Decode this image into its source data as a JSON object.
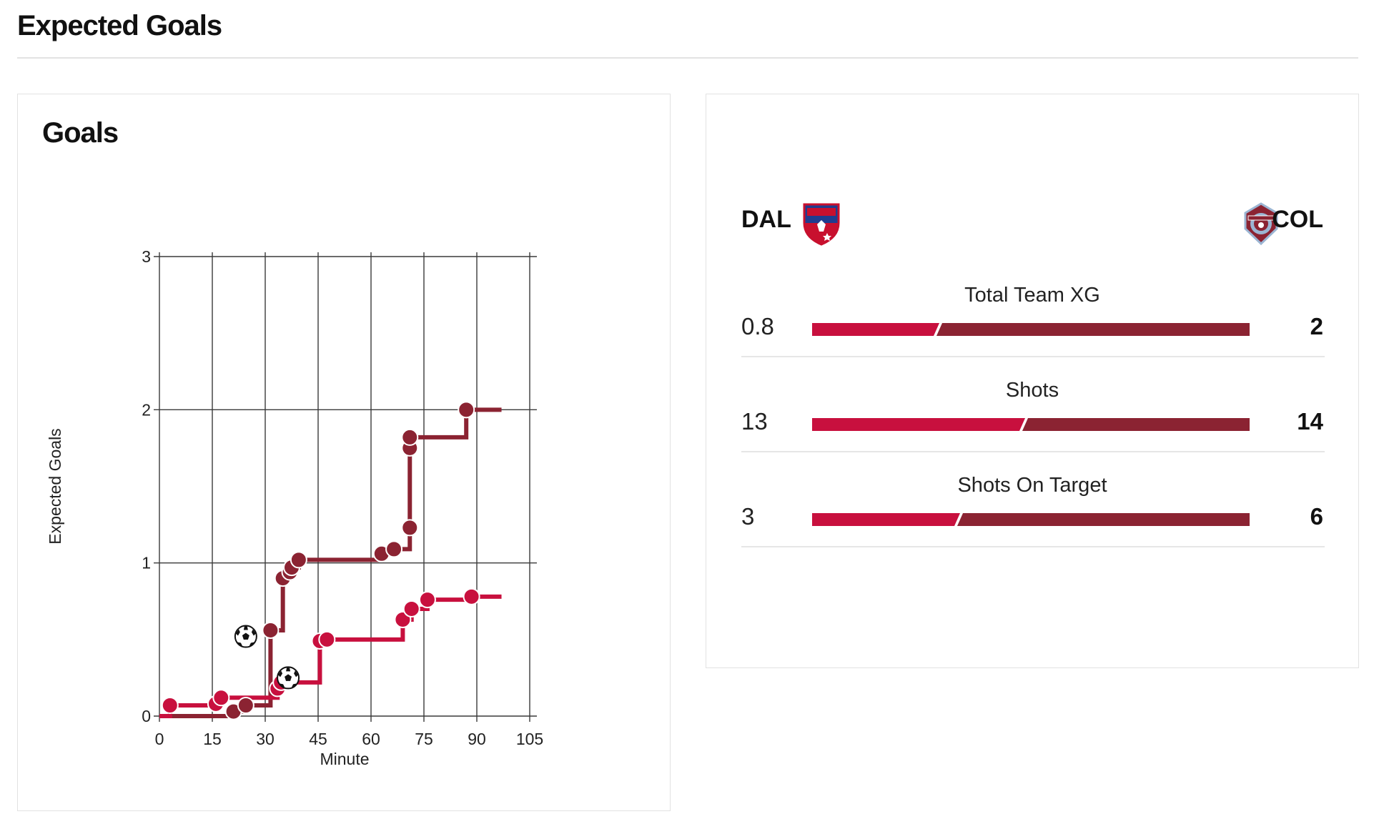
{
  "page": {
    "title": "Expected Goals"
  },
  "goals_card": {
    "title": "Goals"
  },
  "colors": {
    "dal": "#c8103e",
    "col": "#8b2332",
    "grid": "#3a3a3a",
    "divider": "#e6e6e6"
  },
  "chart_data": {
    "type": "line",
    "step": true,
    "title": "",
    "xlabel": "Minute",
    "ylabel": "Expected Goals",
    "xlim": [
      0,
      105
    ],
    "ylim": [
      0,
      3
    ],
    "xticks": [
      "0",
      "15",
      "30",
      "45",
      "60",
      "75",
      "90",
      "105"
    ],
    "yticks": [
      "0",
      "1",
      "2",
      "3"
    ],
    "grid": true,
    "series": [
      {
        "team": "DAL",
        "color": "#c8103e",
        "points": [
          [
            3,
            0.07
          ],
          [
            16,
            0.08
          ],
          [
            17.5,
            0.12
          ],
          [
            33.5,
            0.18
          ],
          [
            34.5,
            0.22
          ],
          [
            45.5,
            0.49
          ],
          [
            47.5,
            0.5
          ],
          [
            69,
            0.63
          ],
          [
            71.5,
            0.7
          ],
          [
            76,
            0.76
          ],
          [
            88.5,
            0.78
          ]
        ],
        "end_minute": 97,
        "goals": [
          [
            36.5,
            0.25
          ]
        ]
      },
      {
        "team": "COL",
        "color": "#8b2332",
        "points": [
          [
            21,
            0.03
          ],
          [
            24.5,
            0.07
          ],
          [
            31.5,
            0.56
          ],
          [
            35,
            0.9
          ],
          [
            37,
            0.94
          ],
          [
            37.5,
            0.97
          ],
          [
            39.5,
            1.02
          ],
          [
            63,
            1.06
          ],
          [
            66.5,
            1.09
          ],
          [
            71,
            1.23
          ],
          [
            71,
            1.75
          ],
          [
            71,
            1.82
          ],
          [
            87,
            2.0
          ]
        ],
        "end_minute": 97,
        "goals": [
          [
            24.5,
            0.52
          ]
        ]
      }
    ]
  },
  "comparison": {
    "home": {
      "abbr": "DAL",
      "crest": "fc-dallas-crest-icon"
    },
    "away": {
      "abbr": "COL",
      "crest": "colorado-rapids-crest-icon"
    },
    "stats": [
      {
        "label": "Total Team XG",
        "home": "0.8",
        "away": "2",
        "home_share": 0.2857
      },
      {
        "label": "Shots",
        "home": "13",
        "away": "14",
        "home_share": 0.4815
      },
      {
        "label": "Shots On Target",
        "home": "3",
        "away": "6",
        "home_share": 0.3333
      }
    ]
  }
}
